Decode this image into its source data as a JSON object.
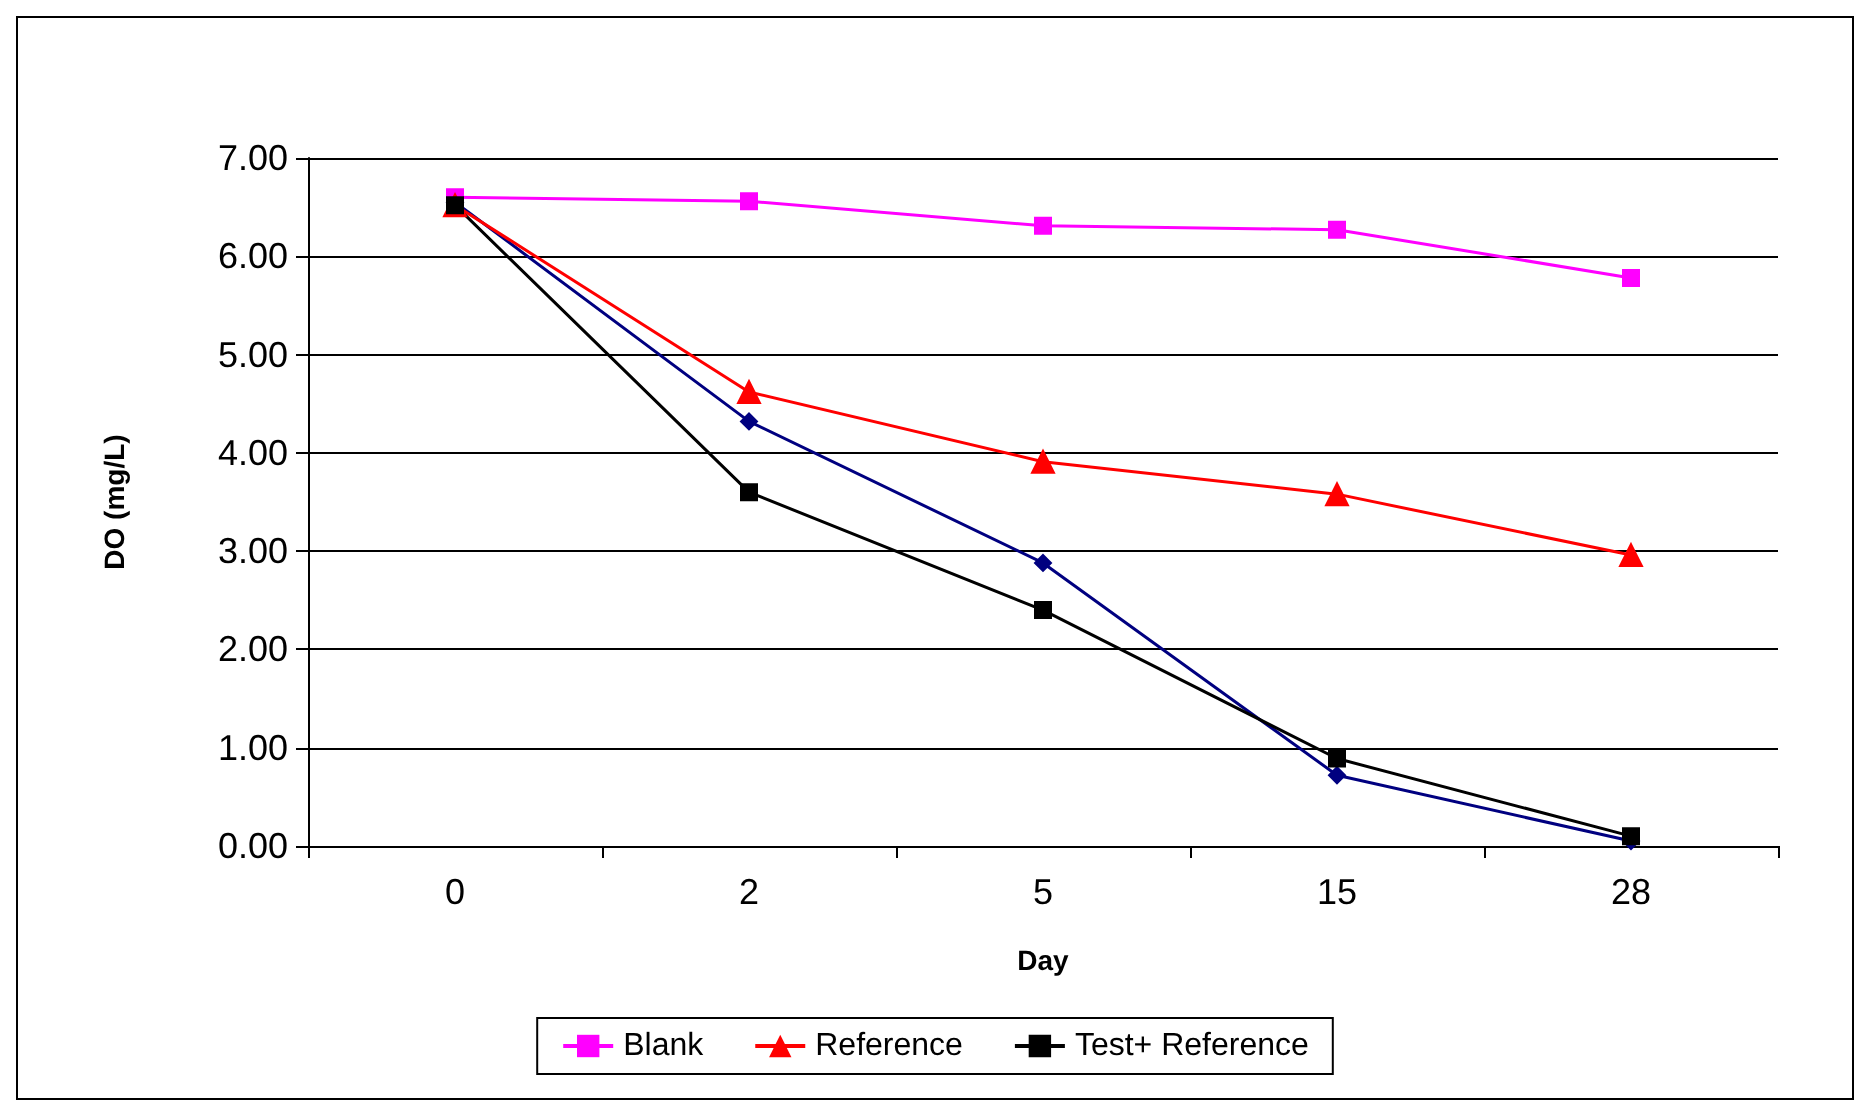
{
  "chart_data": {
    "type": "line",
    "xlabel": "Day",
    "ylabel": "DO (mg/L)",
    "categories": [
      "0",
      "2",
      "5",
      "15",
      "28"
    ],
    "series": [
      {
        "color": "#000080",
        "marker": "diamond",
        "values": [
          6.55,
          4.32,
          2.88,
          0.72,
          0.05
        ]
      },
      {
        "name": "Blank",
        "color": "#ff00ff",
        "marker": "square",
        "values": [
          6.6,
          6.56,
          6.31,
          6.27,
          5.78
        ]
      },
      {
        "name": "Reference",
        "color": "#ff0000",
        "marker": "triangle",
        "values": [
          6.52,
          4.62,
          3.91,
          3.58,
          2.96
        ]
      },
      {
        "name": "Test+ Reference",
        "color": "#000000",
        "marker": "square",
        "values": [
          6.52,
          3.6,
          2.4,
          0.89,
          0.1
        ]
      }
    ],
    "ylim": [
      0,
      7
    ],
    "yticks": [
      {
        "value": 0,
        "label": "0.00"
      },
      {
        "value": 1,
        "label": "1.00"
      },
      {
        "value": 2,
        "label": "2.00"
      },
      {
        "value": 3,
        "label": "3.00"
      },
      {
        "value": 4,
        "label": "4.00"
      },
      {
        "value": 5,
        "label": "5.00"
      },
      {
        "value": 6,
        "label": "6.00"
      },
      {
        "value": 7,
        "label": "7.00"
      }
    ],
    "grid": "y",
    "legend": "bottom",
    "line_style": "solid"
  }
}
